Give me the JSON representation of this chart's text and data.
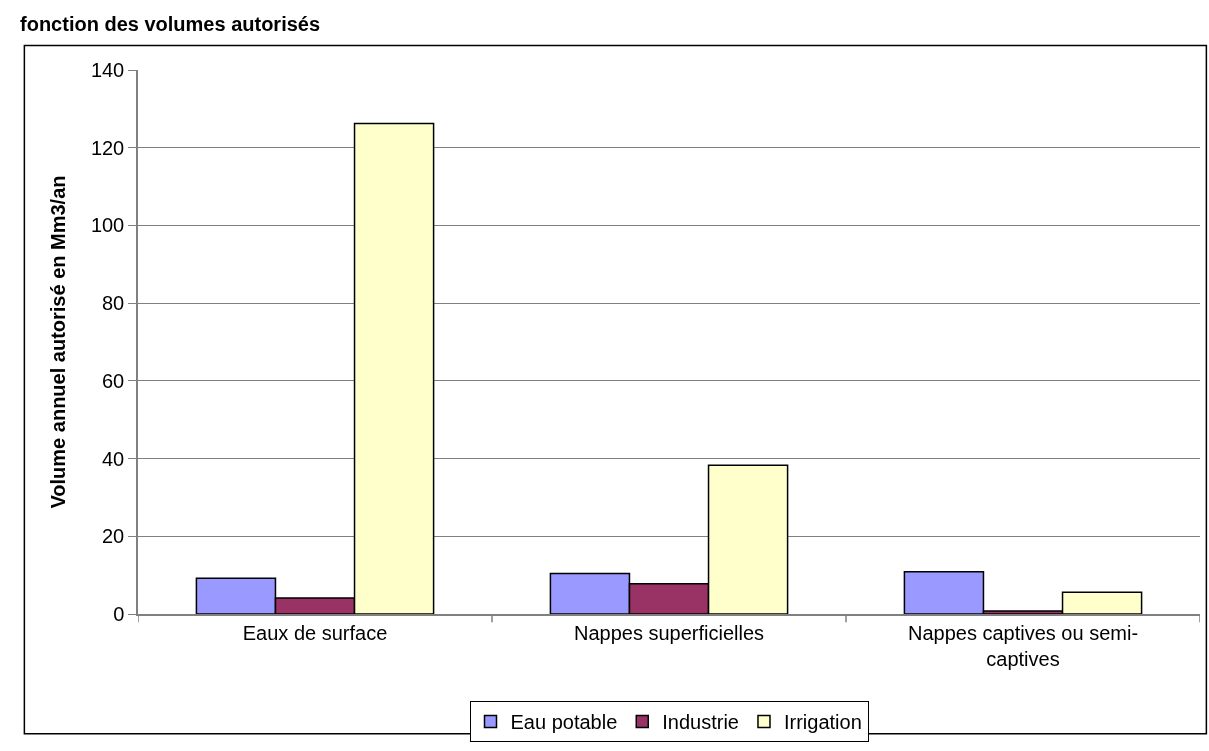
{
  "chart_data": {
    "type": "bar",
    "title": "fonction des volumes autorisés",
    "ylabel": "Volume annuel autorisé en Mm3/an",
    "categories": [
      "Eaux de surface",
      "Nappes superficielles",
      "Nappes captives ou semi-captives"
    ],
    "series": [
      {
        "name": "Eau potable",
        "color": "#9999ff",
        "values": [
          9.2,
          10.4,
          10.9
        ]
      },
      {
        "name": "Industrie",
        "color": "#993366",
        "values": [
          4.1,
          7.8,
          0.8
        ]
      },
      {
        "name": "Irrigation",
        "color": "#ffffcc",
        "values": [
          126.2,
          38.3,
          5.6
        ]
      }
    ],
    "ylim": [
      0,
      140
    ],
    "yticks": [
      0,
      20,
      40,
      60,
      80,
      100,
      120,
      140
    ],
    "grid": "y",
    "legend": "bottom"
  }
}
